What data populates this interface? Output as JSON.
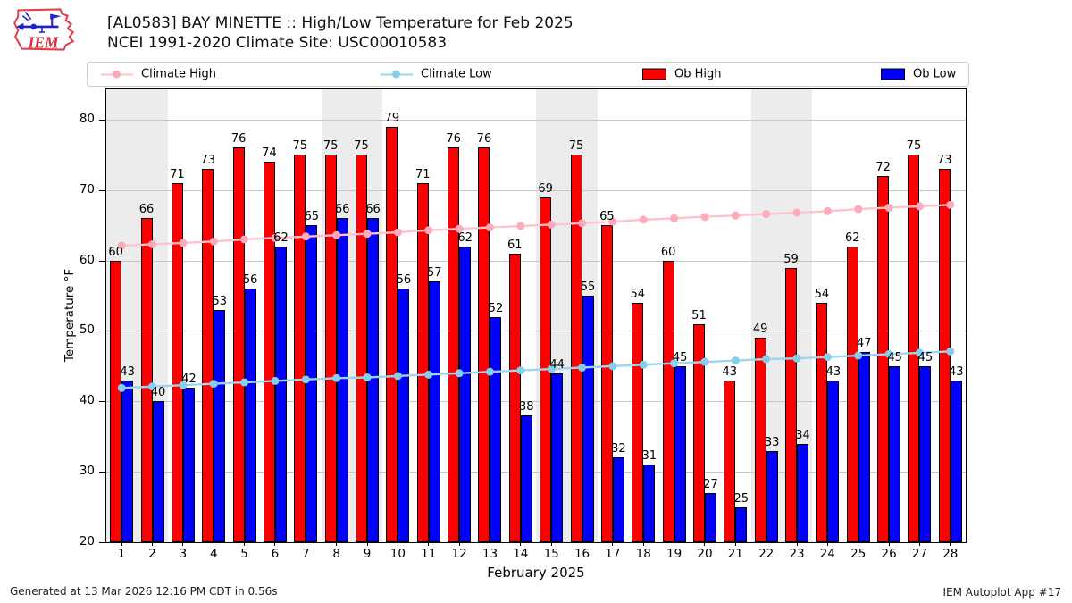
{
  "header": {
    "title_line1": "[AL0583] BAY MINETTE :: High/Low Temperature for Feb 2025",
    "title_line2": "NCEI 1991-2020 Climate Site: USC00010583",
    "logo_text": "IEM"
  },
  "legend": [
    {
      "label": "Climate High",
      "type": "line",
      "color": "#ffc3cd",
      "marker_color": "#ffaabb"
    },
    {
      "label": "Climate Low",
      "type": "line",
      "color": "#9ed4ee",
      "marker_color": "#87ceeb"
    },
    {
      "label": "Ob High",
      "type": "swatch",
      "color": "#ff0000"
    },
    {
      "label": "Ob Low",
      "type": "swatch",
      "color": "#0000ff"
    }
  ],
  "chart_data": {
    "type": "bar",
    "x": [
      1,
      2,
      3,
      4,
      5,
      6,
      7,
      8,
      9,
      10,
      11,
      12,
      13,
      14,
      15,
      16,
      17,
      18,
      19,
      20,
      21,
      22,
      23,
      24,
      25,
      26,
      27,
      28
    ],
    "xlabel": "February 2025",
    "ylabel": "Temperature °F",
    "ylim": [
      20,
      84.3
    ],
    "yticks": [
      20,
      30,
      40,
      50,
      60,
      70,
      80
    ],
    "grid": "horizontal",
    "weekend_shading_days": [
      1,
      2,
      8,
      9,
      15,
      16,
      22,
      23
    ],
    "series": [
      {
        "name": "Ob High",
        "kind": "bar",
        "color": "#ff0000",
        "values": [
          60,
          66,
          71,
          73,
          76,
          74,
          75,
          75,
          75,
          79,
          71,
          76,
          76,
          61,
          69,
          75,
          65,
          54,
          60,
          51,
          43,
          49,
          59,
          54,
          62,
          72,
          75,
          73
        ]
      },
      {
        "name": "Ob Low",
        "kind": "bar",
        "color": "#0000ff",
        "values": [
          43,
          40,
          42,
          53,
          56,
          62,
          65,
          66,
          66,
          56,
          57,
          62,
          52,
          38,
          44,
          55,
          32,
          31,
          45,
          27,
          25,
          33,
          34,
          43,
          47,
          45,
          45,
          43
        ]
      },
      {
        "name": "Climate High",
        "kind": "line",
        "color": "#ffc3cd",
        "marker_color": "#ffaabb",
        "values": [
          62.1,
          62.3,
          62.5,
          62.7,
          63.0,
          63.2,
          63.4,
          63.6,
          63.8,
          64.0,
          64.3,
          64.5,
          64.7,
          64.9,
          65.1,
          65.3,
          65.5,
          65.8,
          66.0,
          66.2,
          66.4,
          66.6,
          66.8,
          67.0,
          67.3,
          67.5,
          67.7,
          67.9
        ]
      },
      {
        "name": "Climate Low",
        "kind": "line",
        "color": "#9ed4ee",
        "marker_color": "#87ceeb",
        "values": [
          41.9,
          42.1,
          42.3,
          42.5,
          42.7,
          42.9,
          43.1,
          43.3,
          43.4,
          43.6,
          43.8,
          44.0,
          44.2,
          44.4,
          44.6,
          44.8,
          45.0,
          45.2,
          45.4,
          45.6,
          45.8,
          46.0,
          46.1,
          46.3,
          46.5,
          46.7,
          46.9,
          47.1
        ]
      }
    ]
  },
  "footer": {
    "left": "Generated at 13 Mar 2026 12:16 PM CDT in 0.56s",
    "right": "IEM Autoplot App #17"
  }
}
